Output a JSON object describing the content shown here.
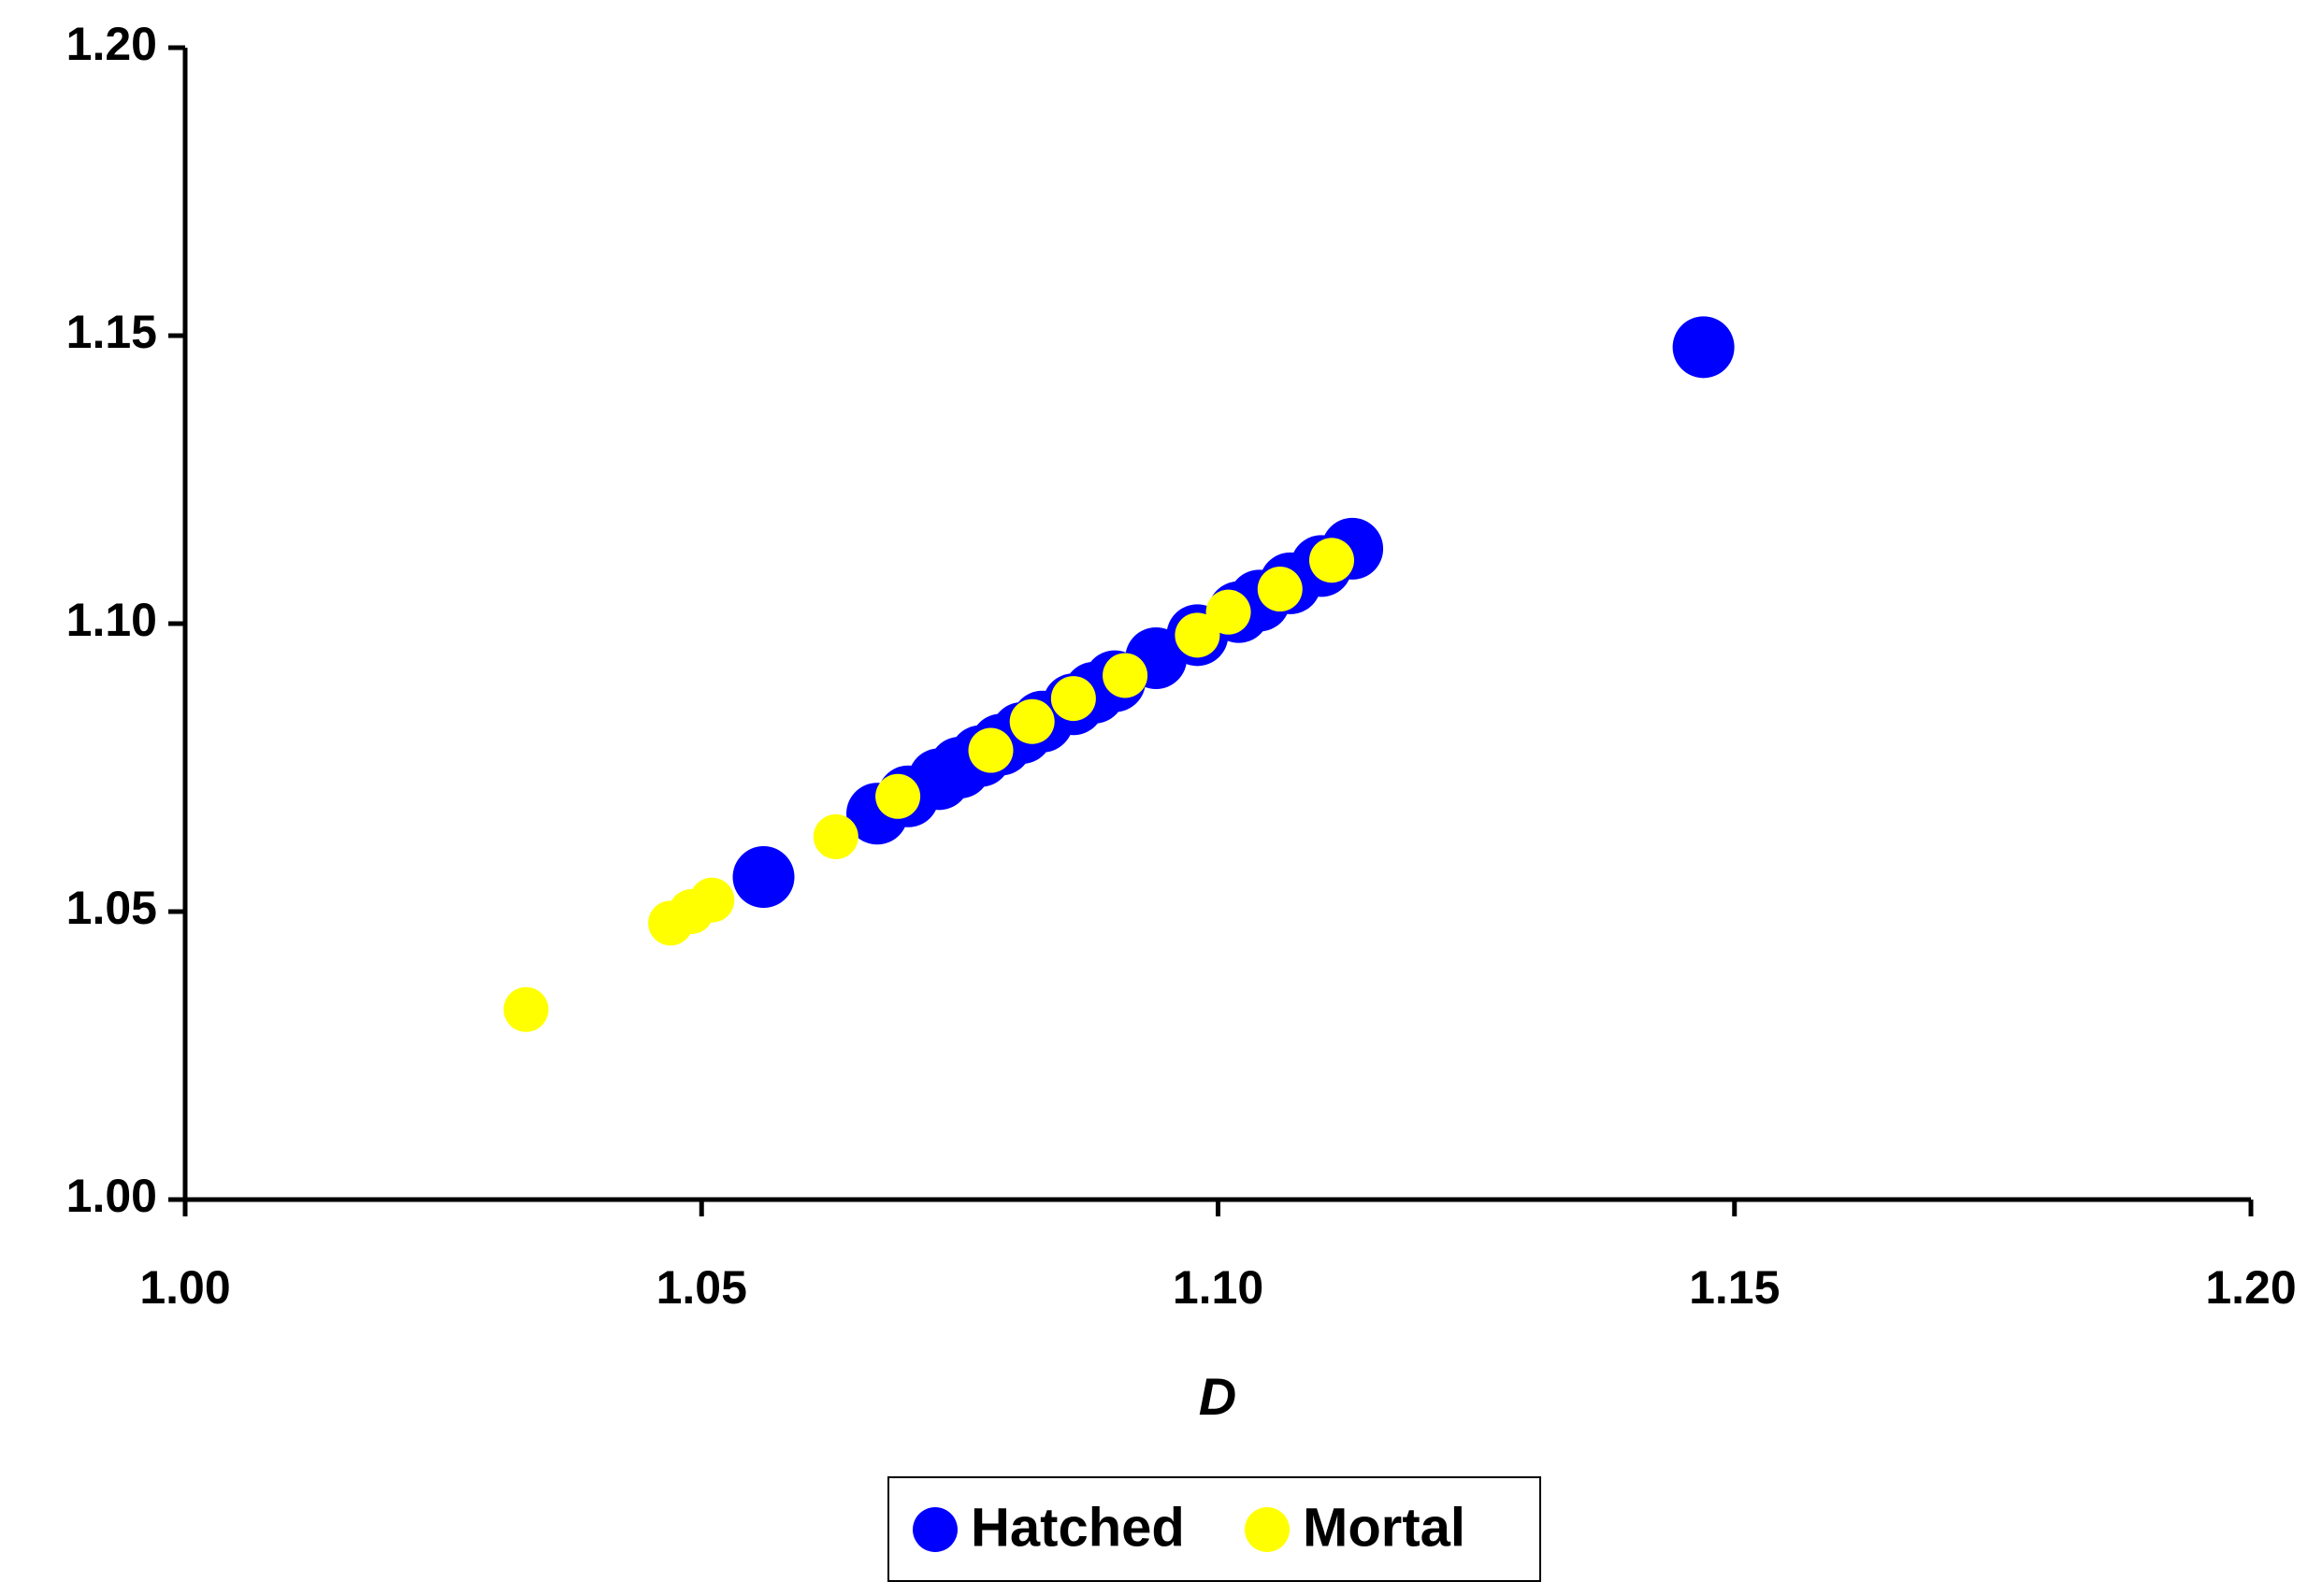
{
  "chart_data": {
    "type": "scatter",
    "x_label": "D",
    "xlim": [
      1.0,
      1.2
    ],
    "ylim": [
      1.0,
      1.2
    ],
    "xticks": [
      {
        "value": 1.0,
        "label": "1.00"
      },
      {
        "value": 1.05,
        "label": "1.05"
      },
      {
        "value": 1.1,
        "label": "1.10"
      },
      {
        "value": 1.15,
        "label": "1.15"
      },
      {
        "value": 1.2,
        "label": "1.20"
      }
    ],
    "yticks": [
      {
        "value": 1.0,
        "label": "1.00"
      },
      {
        "value": 1.05,
        "label": "1.05"
      },
      {
        "value": 1.1,
        "label": "1.10"
      },
      {
        "value": 1.15,
        "label": "1.15"
      },
      {
        "value": 1.2,
        "label": "1.20"
      }
    ],
    "legend": "bottom",
    "series": [
      {
        "name": "Hatched",
        "color": "#0000ff",
        "x": [
          1.056,
          1.067,
          1.07,
          1.073,
          1.075,
          1.077,
          1.079,
          1.081,
          1.083,
          1.086,
          1.088,
          1.09,
          1.094,
          1.098,
          1.102,
          1.104,
          1.107,
          1.11,
          1.113,
          1.147
        ],
        "values": [
          1.056,
          1.067,
          1.07,
          1.073,
          1.075,
          1.077,
          1.079,
          1.081,
          1.083,
          1.086,
          1.088,
          1.09,
          1.094,
          1.098,
          1.102,
          1.104,
          1.107,
          1.11,
          1.113,
          1.148
        ]
      },
      {
        "name": "Mortal",
        "color": "#ffff00",
        "x": [
          1.033,
          1.047,
          1.049,
          1.051,
          1.063,
          1.069,
          1.078,
          1.082,
          1.086,
          1.091,
          1.098,
          1.101,
          1.106,
          1.111
        ],
        "values": [
          1.033,
          1.048,
          1.05,
          1.052,
          1.063,
          1.07,
          1.078,
          1.083,
          1.087,
          1.091,
          1.098,
          1.102,
          1.106,
          1.111
        ]
      }
    ]
  }
}
